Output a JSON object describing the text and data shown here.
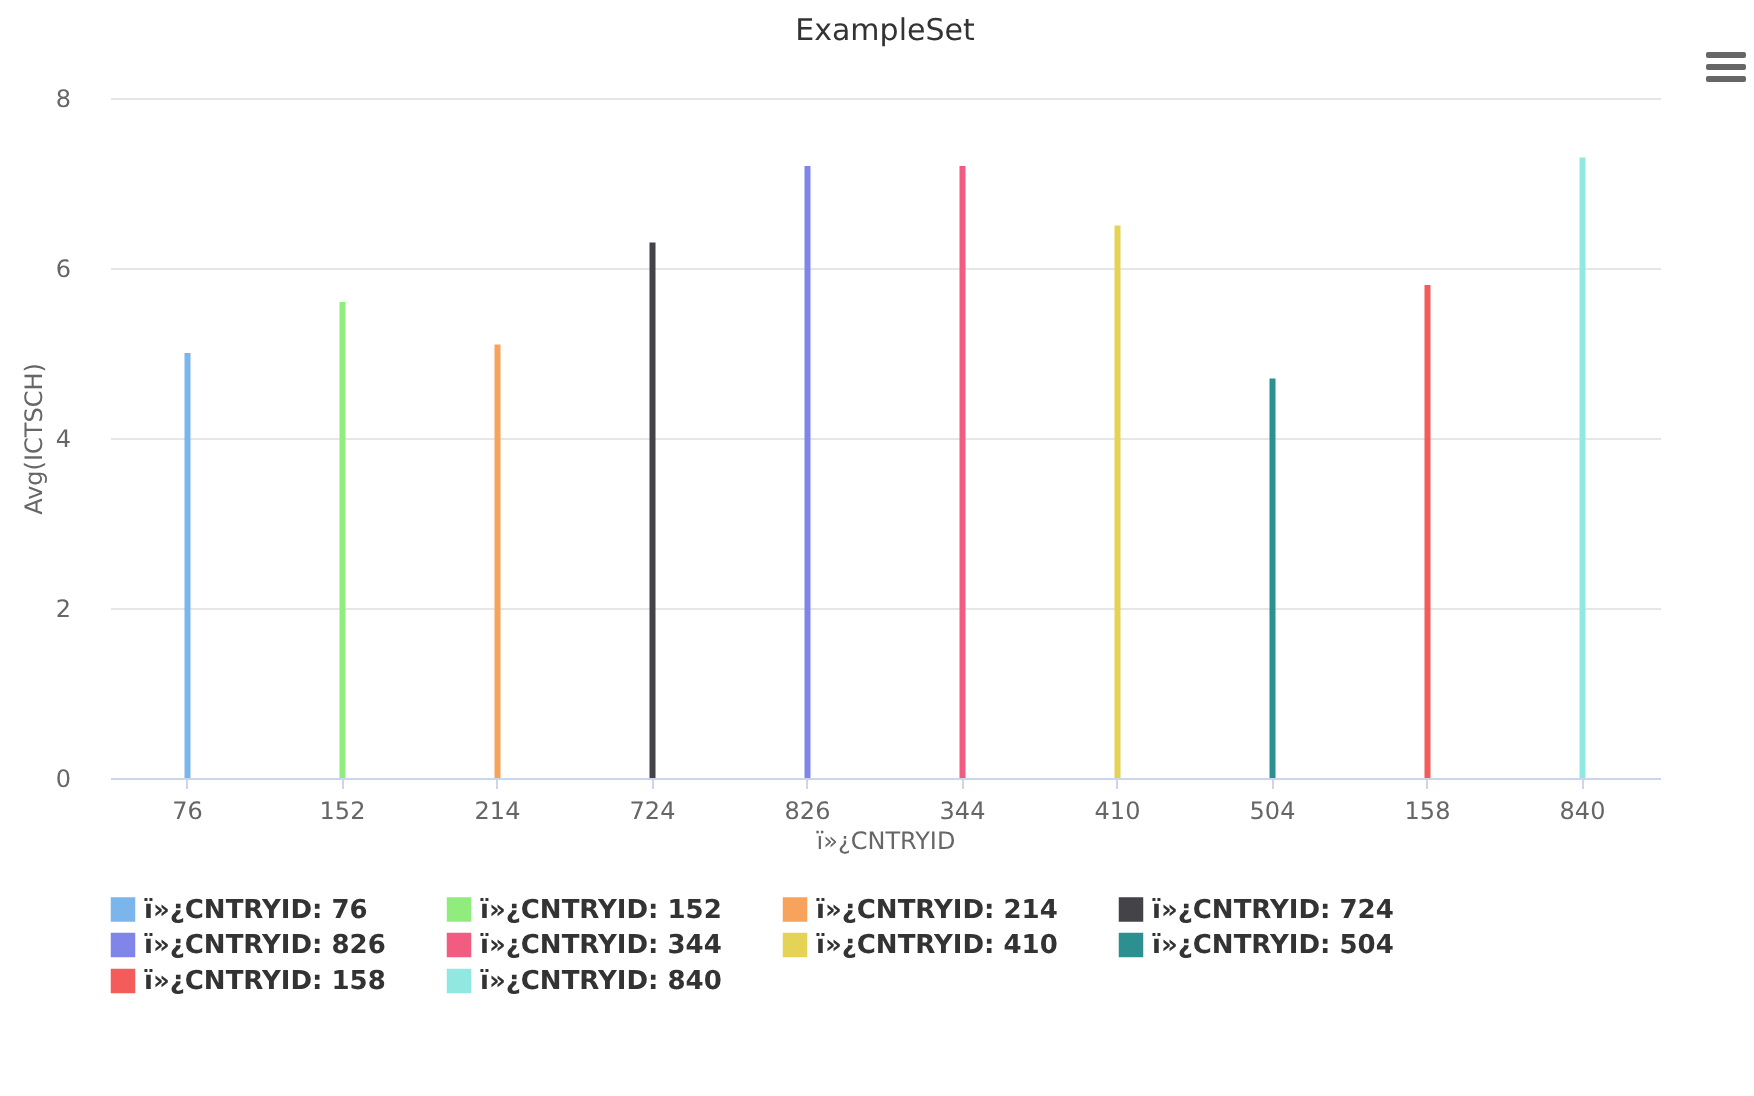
{
  "chart_data": {
    "type": "bar",
    "title": "ExampleSet",
    "xlabel": "ï»¿CNTRYID",
    "ylabel": "Avg(ICTSCH)",
    "categories": [
      "76",
      "152",
      "214",
      "724",
      "826",
      "344",
      "410",
      "504",
      "158",
      "840"
    ],
    "series": [
      {
        "name": "ï»¿CNTRYID: 76",
        "color": "#7cb5ec",
        "values": [
          5.0,
          null,
          null,
          null,
          null,
          null,
          null,
          null,
          null,
          null
        ]
      },
      {
        "name": "ï»¿CNTRYID: 152",
        "color": "#90ed7d",
        "values": [
          null,
          5.6,
          null,
          null,
          null,
          null,
          null,
          null,
          null,
          null
        ]
      },
      {
        "name": "ï»¿CNTRYID: 214",
        "color": "#f7a35c",
        "values": [
          null,
          null,
          5.1,
          null,
          null,
          null,
          null,
          null,
          null,
          null
        ]
      },
      {
        "name": "ï»¿CNTRYID: 724",
        "color": "#434348",
        "values": [
          null,
          null,
          null,
          6.3,
          null,
          null,
          null,
          null,
          null,
          null
        ]
      },
      {
        "name": "ï»¿CNTRYID: 826",
        "color": "#8085e9",
        "values": [
          null,
          null,
          null,
          null,
          7.2,
          null,
          null,
          null,
          null,
          null
        ]
      },
      {
        "name": "ï»¿CNTRYID: 344",
        "color": "#f15c80",
        "values": [
          null,
          null,
          null,
          null,
          null,
          7.2,
          null,
          null,
          null,
          null
        ]
      },
      {
        "name": "ï»¿CNTRYID: 410",
        "color": "#e4d354",
        "values": [
          null,
          null,
          null,
          null,
          null,
          null,
          6.5,
          null,
          null,
          null
        ]
      },
      {
        "name": "ï»¿CNTRYID: 504",
        "color": "#2b908f",
        "values": [
          null,
          null,
          null,
          null,
          null,
          null,
          null,
          4.7,
          null,
          null
        ]
      },
      {
        "name": "ï»¿CNTRYID: 158",
        "color": "#f45b5b",
        "values": [
          null,
          null,
          null,
          null,
          null,
          null,
          null,
          null,
          5.8,
          null
        ]
      },
      {
        "name": "ï»¿CNTRYID: 840",
        "color": "#91e8e1",
        "values": [
          null,
          null,
          null,
          null,
          null,
          null,
          null,
          null,
          null,
          7.3
        ]
      }
    ],
    "ylim": [
      0,
      8
    ],
    "yticks": [
      0,
      2,
      4,
      6,
      8
    ],
    "grid": "y",
    "legend": "bottom"
  }
}
